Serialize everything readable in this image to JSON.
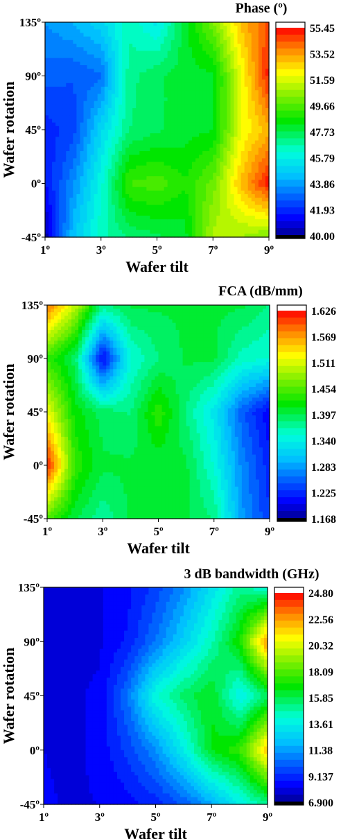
{
  "chart_data": [
    {
      "type": "heatmap",
      "title": "Phase (º)",
      "xlabel": "Wafer tilt",
      "ylabel": "Wafer rotation",
      "x_ticks": [
        "1º",
        "3º",
        "5º",
        "7º",
        "9º"
      ],
      "y_ticks": [
        "-45º",
        "0º",
        "45º",
        "90º",
        "135º"
      ],
      "x": [
        1,
        2,
        3,
        4,
        5,
        6,
        7,
        8,
        9
      ],
      "y": [
        -45,
        0,
        45,
        90,
        135
      ],
      "colorbar_ticks": [
        "55.45",
        "53.52",
        "51.59",
        "49.66",
        "47.73",
        "45.79",
        "43.86",
        "41.93",
        "40.00"
      ],
      "zlim": [
        40.0,
        55.45
      ],
      "z": [
        [
          40.2,
          44.5,
          46.5,
          47.3,
          47.6,
          48.0,
          51.0,
          50.8,
          50.2
        ],
        [
          41.5,
          43.5,
          46.0,
          49.3,
          49.6,
          48.8,
          50.0,
          53.0,
          55.3
        ],
        [
          41.8,
          42.3,
          45.0,
          47.2,
          47.6,
          48.0,
          48.2,
          51.8,
          53.2
        ],
        [
          42.8,
          42.6,
          43.0,
          47.0,
          47.6,
          48.0,
          48.1,
          51.8,
          55.2
        ],
        [
          43.6,
          44.2,
          45.0,
          46.5,
          45.5,
          48.0,
          50.2,
          53.0,
          54.6
        ]
      ]
    },
    {
      "type": "heatmap",
      "title": "FCA (dB/mm)",
      "xlabel": "Wafer tilt",
      "ylabel": "Wafer rotation",
      "x_ticks": [
        "1º",
        "3º",
        "5º",
        "7º",
        "9º"
      ],
      "y_ticks": [
        "-45º",
        "0º",
        "45º",
        "90º",
        "135º"
      ],
      "x": [
        1,
        2,
        3,
        4,
        5,
        6,
        7,
        8,
        9
      ],
      "y": [
        -45,
        0,
        45,
        90,
        135
      ],
      "colorbar_ticks": [
        "1.626",
        "1.569",
        "1.511",
        "1.454",
        "1.397",
        "1.340",
        "1.283",
        "1.225",
        "1.168"
      ],
      "zlim": [
        1.168,
        1.626
      ],
      "z": [
        [
          1.45,
          1.4,
          1.37,
          1.4,
          1.4,
          1.4,
          1.38,
          1.28,
          1.23
        ],
        [
          1.62,
          1.44,
          1.4,
          1.4,
          1.4,
          1.4,
          1.35,
          1.27,
          1.22
        ],
        [
          1.52,
          1.42,
          1.39,
          1.38,
          1.44,
          1.38,
          1.33,
          1.25,
          1.2
        ],
        [
          1.44,
          1.39,
          1.2,
          1.35,
          1.38,
          1.4,
          1.4,
          1.36,
          1.35
        ],
        [
          1.59,
          1.5,
          1.38,
          1.4,
          1.4,
          1.4,
          1.4,
          1.4,
          1.38
        ]
      ]
    },
    {
      "type": "heatmap",
      "title": "3 dB bandwidth (GHz)",
      "xlabel": "Wafer tilt",
      "ylabel": "Wafer rotation",
      "x_ticks": [
        "1º",
        "3º",
        "5º",
        "7º",
        "9º"
      ],
      "y_ticks": [
        "-45º",
        "0º",
        "45º",
        "90º",
        "135º"
      ],
      "x": [
        1,
        2,
        3,
        4,
        5,
        6,
        7,
        8,
        9
      ],
      "y": [
        -45,
        0,
        45,
        90,
        135
      ],
      "colorbar_ticks": [
        "24.80",
        "22.56",
        "20.32",
        "18.09",
        "15.85",
        "13.61",
        "11.38",
        "9.137",
        "6.900"
      ],
      "zlim": [
        6.9,
        24.8
      ],
      "z": [
        [
          8.2,
          8.0,
          8.1,
          8.4,
          9.0,
          10.0,
          11.5,
          13.5,
          15.0
        ],
        [
          8.1,
          7.9,
          8.3,
          9.5,
          11.0,
          13.5,
          16.5,
          17.5,
          22.0
        ],
        [
          8.0,
          8.0,
          8.2,
          10.5,
          14.0,
          15.5,
          16.5,
          13.5,
          15.5
        ],
        [
          8.0,
          7.9,
          8.0,
          8.8,
          10.5,
          12.5,
          14.5,
          17.0,
          23.0
        ],
        [
          8.0,
          8.0,
          8.0,
          8.5,
          9.5,
          11.0,
          13.0,
          15.0,
          14.0
        ]
      ]
    }
  ]
}
